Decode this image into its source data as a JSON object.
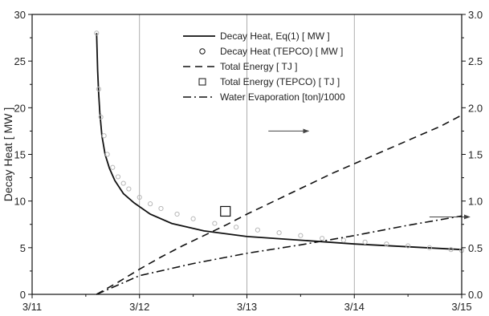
{
  "chart_data": {
    "type": "line",
    "xlabel": "",
    "ylabel": "Decay Heat [ MW ]",
    "xlim": [
      0,
      4
    ],
    "ylim": [
      0,
      30
    ],
    "y2lim": [
      0,
      3.0
    ],
    "x_ticks": [
      0,
      1,
      2,
      3,
      4
    ],
    "x_tick_labels": [
      "3/11",
      "3/12",
      "3/13",
      "3/14",
      "3/15"
    ],
    "y_ticks": [
      0,
      5,
      10,
      15,
      20,
      25,
      30
    ],
    "y_tick_labels": [
      "0",
      "5",
      "10",
      "15",
      "20",
      "25",
      "30"
    ],
    "y2_ticks": [
      0,
      0.5,
      1.0,
      1.5,
      2.0,
      2.5,
      3.0
    ],
    "y2_tick_labels": [
      "0.0",
      "0.5",
      "1.0",
      "1.5",
      "2.0",
      "2.5",
      "3.0"
    ],
    "vertical_grid": [
      1,
      2,
      3
    ],
    "legend_position": "top-right",
    "legend": [
      "Decay Heat, Eq(1) [ MW ]",
      "Decay Heat (TEPCO) [ MW ]",
      "Total Energy [ TJ ]",
      "Total Energy  (TEPCO) [ TJ ]",
      "Water Evaporation  [ton]/1000"
    ],
    "series": [
      {
        "name": "Decay Heat, Eq(1) [ MW ]",
        "axis": "left",
        "style": "solid",
        "x": [
          0.6,
          0.61,
          0.62,
          0.63,
          0.65,
          0.68,
          0.72,
          0.77,
          0.85,
          0.95,
          1.1,
          1.3,
          1.6,
          2.0,
          2.5,
          3.0,
          3.5,
          4.0
        ],
        "y": [
          28,
          24,
          21.5,
          19.5,
          17,
          15,
          13.5,
          12.2,
          10.8,
          9.8,
          8.6,
          7.6,
          6.8,
          6.2,
          5.8,
          5.4,
          5.1,
          4.8
        ]
      },
      {
        "name": "Decay Heat (TEPCO) [ MW ]",
        "axis": "left",
        "style": "markers",
        "x": [
          0.6,
          0.62,
          0.64,
          0.67,
          0.7,
          0.75,
          0.8,
          0.85,
          0.9,
          1.0,
          1.1,
          1.2,
          1.35,
          1.5,
          1.7,
          1.9,
          2.1,
          2.3,
          2.5,
          2.7,
          2.9,
          3.1,
          3.3,
          3.5,
          3.7,
          3.9,
          4.0
        ],
        "y": [
          28,
          22,
          19,
          17,
          15,
          13.6,
          12.6,
          11.9,
          11.3,
          10.4,
          9.7,
          9.2,
          8.6,
          8.1,
          7.6,
          7.2,
          6.9,
          6.6,
          6.3,
          6.0,
          5.8,
          5.6,
          5.4,
          5.2,
          5.0,
          4.8,
          4.7
        ]
      },
      {
        "name": "Total Energy [ TJ ]",
        "axis": "right",
        "style": "dashed",
        "x": [
          0.6,
          0.8,
          1.0,
          1.2,
          1.4,
          1.6,
          1.8,
          2.0,
          2.2,
          2.4,
          2.6,
          2.8,
          3.0,
          3.2,
          3.4,
          3.6,
          3.8,
          4.0
        ],
        "y": [
          0.0,
          0.13,
          0.27,
          0.4,
          0.52,
          0.63,
          0.74,
          0.86,
          0.97,
          1.08,
          1.19,
          1.3,
          1.4,
          1.5,
          1.6,
          1.7,
          1.8,
          1.92
        ]
      },
      {
        "name": "Total Energy  (TEPCO) [ TJ ]",
        "axis": "right",
        "style": "square",
        "x": [
          1.8
        ],
        "y": [
          0.89
        ]
      },
      {
        "name": "Water Evaporation  [ton]/1000",
        "axis": "right",
        "style": "dashdot",
        "x": [
          0.6,
          1.0,
          1.5,
          2.0,
          2.5,
          3.0,
          3.5,
          4.0
        ],
        "y": [
          0.0,
          0.2,
          0.33,
          0.44,
          0.53,
          0.63,
          0.74,
          0.84
        ]
      }
    ],
    "annotations": [
      {
        "type": "arrow",
        "direction": "right",
        "axis": "right",
        "x": 2.2,
        "y": 1.75
      },
      {
        "type": "arrow",
        "direction": "right",
        "axis": "right",
        "x": 3.7,
        "y": 0.83
      }
    ]
  }
}
